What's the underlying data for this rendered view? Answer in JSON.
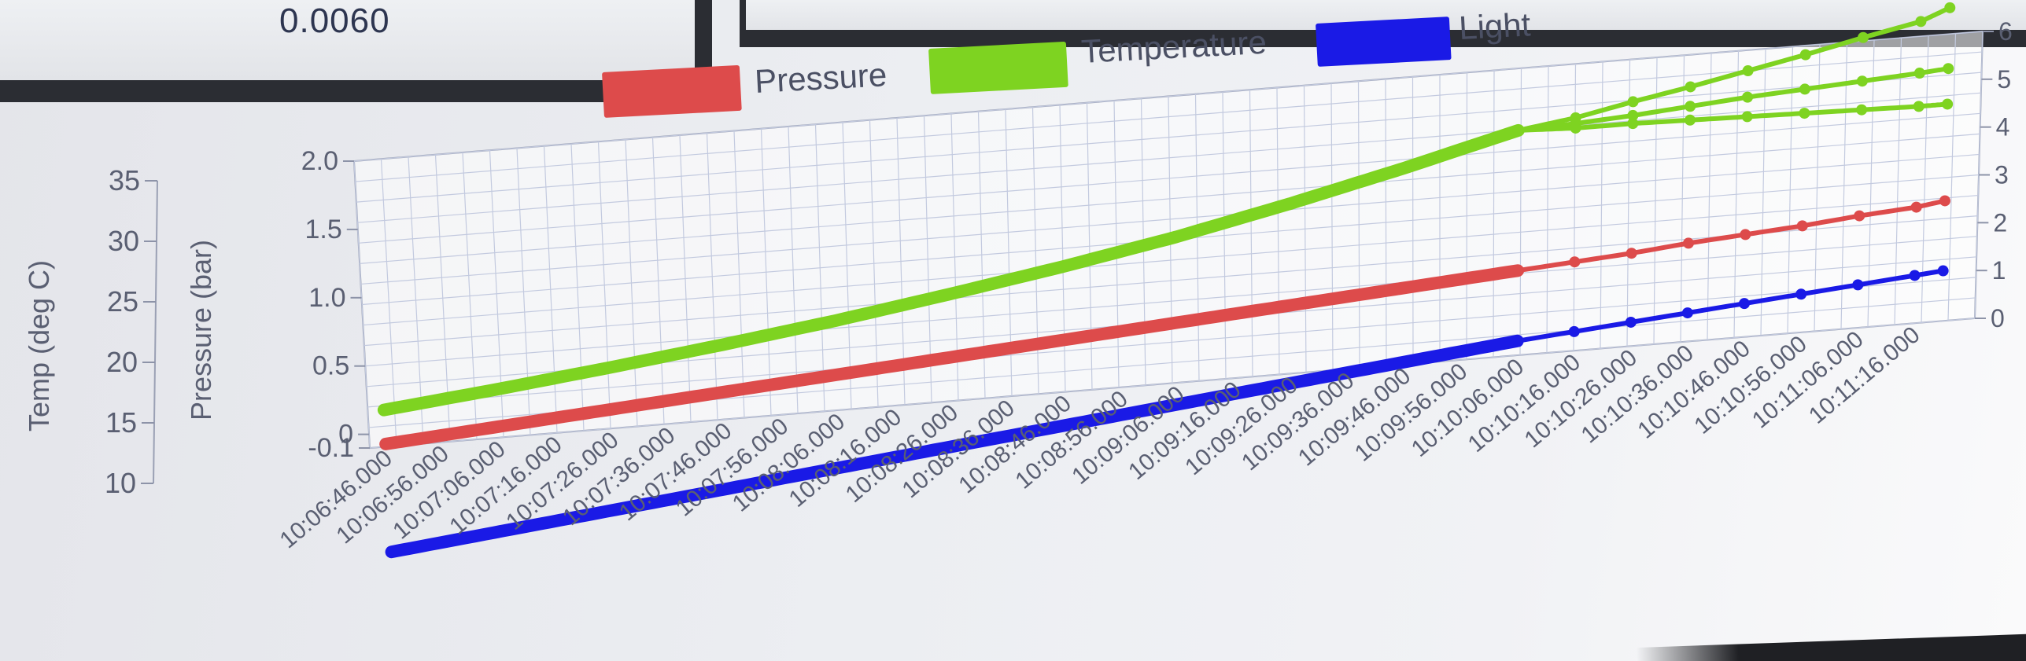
{
  "readout": {
    "value": "0.0060"
  },
  "chart_data": {
    "type": "line",
    "legend": {
      "placement": "top",
      "entries": [
        {
          "label": "Pressure",
          "color": "#dd4b4b"
        },
        {
          "label": "Temperature",
          "color": "#7ed321"
        },
        {
          "label": "Light",
          "color": "#1a1ae6"
        }
      ]
    },
    "axes": {
      "temp": {
        "title": "Temp (deg C)",
        "ticks": [
          "10",
          "15",
          "20",
          "25",
          "30",
          "35"
        ],
        "ylim": [
          10,
          35
        ]
      },
      "pressure": {
        "title": "Pressure (bar)",
        "ticks": [
          "-0.1",
          "0",
          "0.5",
          "1.0",
          "1.5",
          "2.0"
        ],
        "ylim": [
          -0.1,
          2.0
        ]
      },
      "light": {
        "title": "",
        "ticks": [
          "0",
          "1",
          "2",
          "3",
          "4",
          "5",
          "6"
        ],
        "ylim": [
          0,
          6
        ]
      }
    },
    "x_ticks": [
      "10:06:46.000",
      "10:06:56.000",
      "10:07:06.000",
      "10:07:16.000",
      "10:07:26.000",
      "10:07:36.000",
      "10:07:46.000",
      "10:07:56.000",
      "10:08:06.000",
      "10:08:16.000",
      "10:08:26.000",
      "10:08:36.000",
      "10:08:46.000",
      "10:08:56.000",
      "10:09:06.000",
      "10:09:16.000",
      "10:09:26.000",
      "10:09:36.000",
      "10:09:46.000",
      "10:09:56.000",
      "10:10:06.000",
      "10:10:16.000",
      "10:10:26.000",
      "10:10:36.000",
      "10:10:46.000",
      "10:10:56.000",
      "10:11:06.000",
      "10:11:16.000"
    ],
    "grid": true,
    "series": [
      {
        "name": "Temperature",
        "axis": "temp",
        "color": "#7ed321",
        "x": [
          "10:06:46",
          "10:07:06",
          "10:07:26",
          "10:07:46",
          "10:08:06",
          "10:08:26",
          "10:08:46",
          "10:09:06",
          "10:09:26",
          "10:09:46",
          "10:10:06",
          "10:10:16",
          "10:10:26",
          "10:10:36",
          "10:10:46",
          "10:10:56",
          "10:11:06",
          "10:11:16",
          "10:11:21"
        ],
        "values": [
          13.2,
          14.2,
          15.3,
          16.5,
          17.8,
          19.3,
          20.9,
          22.7,
          24.8,
          27.1,
          29.6,
          30.3,
          31.3,
          32.2,
          33.2,
          34.2,
          35.3,
          36.3,
          37.3
        ],
        "branches": [
          {
            "x": [
              "10:10:06",
              "10:10:16",
              "10:10:26",
              "10:10:36",
              "10:10:46",
              "10:10:56",
              "10:11:06",
              "10:11:16",
              "10:11:21"
            ],
            "values": [
              29.6,
              29.8,
              30.1,
              30.5,
              30.9,
              31.2,
              31.5,
              31.8,
              32.0
            ]
          },
          {
            "x": [
              "10:10:06",
              "10:10:16",
              "10:10:26",
              "10:10:36",
              "10:10:46",
              "10:10:56",
              "10:11:06",
              "10:11:16",
              "10:11:21"
            ],
            "values": [
              29.6,
              29.4,
              29.4,
              29.3,
              29.2,
              29.1,
              29.0,
              28.9,
              28.9
            ]
          }
        ]
      },
      {
        "name": "Pressure",
        "axis": "pressure",
        "color": "#dd4b4b",
        "x": [
          "10:06:46",
          "10:07:06",
          "10:07:26",
          "10:07:46",
          "10:08:06",
          "10:08:26",
          "10:08:46",
          "10:09:06",
          "10:09:26",
          "10:09:46",
          "10:10:06",
          "10:10:16",
          "10:10:26",
          "10:10:36",
          "10:10:46",
          "10:10:56",
          "10:11:06",
          "10:11:16",
          "10:11:21"
        ],
        "values": [
          -0.08,
          -0.02,
          0.04,
          0.1,
          0.16,
          0.22,
          0.28,
          0.34,
          0.4,
          0.46,
          0.52,
          0.55,
          0.58,
          0.62,
          0.65,
          0.68,
          0.72,
          0.75,
          0.78
        ]
      },
      {
        "name": "Light",
        "axis": "light",
        "color": "#1a1ae6",
        "x": [
          "10:06:46",
          "10:07:06",
          "10:07:26",
          "10:07:46",
          "10:08:06",
          "10:08:26",
          "10:08:46",
          "10:09:06",
          "10:09:26",
          "10:09:46",
          "10:10:06",
          "10:10:16",
          "10:10:26",
          "10:10:36",
          "10:10:46",
          "10:10:56",
          "10:11:06",
          "10:11:16",
          "10:11:21"
        ],
        "values": [
          -2.2,
          -1.95,
          -1.7,
          -1.45,
          -1.2,
          -0.95,
          -0.7,
          -0.45,
          -0.2,
          0.05,
          0.3,
          0.4,
          0.5,
          0.6,
          0.7,
          0.8,
          0.9,
          1.0,
          1.05
        ]
      }
    ]
  }
}
